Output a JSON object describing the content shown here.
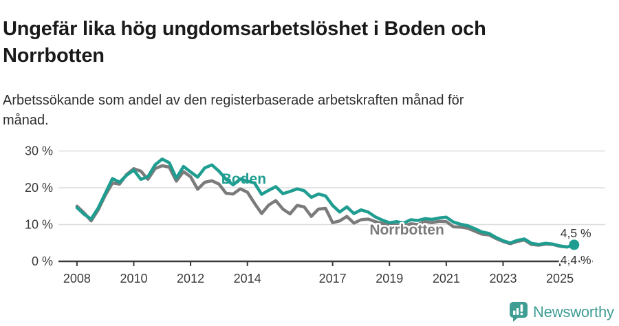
{
  "header": {
    "title": "Ungefär lika hög ungdomsarbetslöshet i Boden och Norrbotten",
    "subtitle": "Arbetssökande som andel av den registerbaserade arbetskraften månad för månad."
  },
  "footer": {
    "brand_name": "Newsworthy",
    "logo_icon": "speech-bubble-bar-chart-exclamation-icon"
  },
  "colors": {
    "boden": "#1f9d90",
    "norrbotten": "#7b7b7b",
    "grid": "#dcdcdc",
    "axis": "#3a3a3a",
    "axis_text": "#3a3a3a",
    "annotation_text": "#333333",
    "title_text": "#1a1a1a",
    "subtitle_text": "#2e2e2e",
    "brand": "#3f9d94",
    "background": "#ffffff"
  },
  "chart_data": {
    "type": "line",
    "unit": "%",
    "title": "Ungefär lika hög ungdomsarbetslöshet i Boden och Norrbotten",
    "subtitle": "Arbetssökande som andel av den registerbaserade arbetskraften månad för månad.",
    "xlim": [
      2007.35,
      2026.16
    ],
    "ylim": [
      0,
      33
    ],
    "grid": "horizontal",
    "legend_position": "inline-annotations",
    "x_ticks": [
      {
        "value": 2008,
        "label": "2008"
      },
      {
        "value": 2010,
        "label": "2010"
      },
      {
        "value": 2012,
        "label": "2012"
      },
      {
        "value": 2014,
        "label": "2014"
      },
      {
        "value": 2017,
        "label": "2017"
      },
      {
        "value": 2019,
        "label": "2019"
      },
      {
        "value": 2021,
        "label": "2021"
      },
      {
        "value": 2023,
        "label": "2023"
      },
      {
        "value": 2025,
        "label": "2025"
      }
    ],
    "y_ticks": [
      {
        "value": 0,
        "label": "0 %"
      },
      {
        "value": 10,
        "label": "10 %"
      },
      {
        "value": 20,
        "label": "20 %"
      },
      {
        "value": 30,
        "label": "30 %"
      }
    ],
    "x": [
      2008,
      2008.25,
      2008.5,
      2008.75,
      2009,
      2009.25,
      2009.5,
      2009.75,
      2010,
      2010.25,
      2010.5,
      2010.75,
      2011,
      2011.25,
      2011.5,
      2011.75,
      2012,
      2012.25,
      2012.5,
      2012.75,
      2013,
      2013.25,
      2013.5,
      2013.75,
      2014,
      2014.25,
      2014.5,
      2014.75,
      2015,
      2015.25,
      2015.5,
      2015.75,
      2016,
      2016.25,
      2016.5,
      2016.75,
      2017,
      2017.25,
      2017.5,
      2017.75,
      2018,
      2018.25,
      2018.5,
      2018.75,
      2019,
      2019.25,
      2019.5,
      2019.75,
      2020,
      2020.25,
      2020.5,
      2020.75,
      2021,
      2021.25,
      2021.5,
      2021.75,
      2022,
      2022.25,
      2022.5,
      2022.75,
      2023,
      2023.25,
      2023.5,
      2023.75,
      2024,
      2024.25,
      2024.5,
      2024.75,
      2025,
      2025.25,
      2025.5
    ],
    "series": [
      {
        "name": "Norrbotten",
        "color_key": "norrbotten",
        "end_label": "4,4 %",
        "end_dot": false,
        "stroke_width": 4.5,
        "values": [
          15.0,
          13.2,
          11.0,
          14.0,
          18.0,
          21.3,
          21.0,
          23.6,
          25.2,
          24.5,
          22.3,
          25.2,
          26.0,
          25.6,
          21.8,
          24.4,
          23.0,
          19.6,
          21.5,
          21.9,
          21.0,
          18.5,
          18.3,
          19.7,
          18.8,
          15.8,
          13.0,
          15.3,
          16.5,
          14.2,
          12.9,
          15.2,
          14.8,
          12.2,
          14.2,
          14.4,
          10.5,
          11.0,
          12.2,
          10.4,
          11.3,
          11.5,
          10.8,
          10.3,
          10.0,
          9.9,
          9.6,
          10.2,
          10.0,
          10.8,
          10.5,
          10.9,
          10.8,
          9.4,
          9.3,
          9.0,
          8.2,
          7.4,
          7.2,
          6.2,
          5.4,
          4.8,
          5.4,
          5.8,
          4.6,
          4.4,
          4.7,
          4.6,
          4.1,
          3.9,
          4.4
        ]
      },
      {
        "name": "Boden",
        "color_key": "boden",
        "end_label": "4,5 %",
        "end_dot": true,
        "stroke_width": 4.5,
        "values": [
          14.6,
          12.8,
          11.5,
          14.5,
          18.5,
          22.5,
          21.5,
          23.4,
          24.8,
          22.3,
          23.0,
          26.2,
          27.8,
          26.8,
          22.6,
          25.8,
          24.3,
          22.9,
          25.4,
          26.2,
          24.5,
          22.3,
          20.8,
          22.4,
          21.8,
          21.3,
          18.2,
          19.3,
          20.3,
          18.4,
          19.0,
          19.7,
          19.2,
          17.4,
          18.3,
          17.8,
          15.2,
          13.4,
          14.8,
          13.0,
          14.0,
          13.4,
          12.1,
          11.2,
          10.5,
          10.8,
          10.4,
          11.3,
          11.1,
          11.6,
          11.4,
          11.8,
          12.0,
          10.7,
          10.1,
          9.7,
          8.9,
          8.0,
          7.6,
          6.5,
          5.6,
          5.0,
          5.7,
          6.1,
          4.9,
          4.6,
          4.9,
          4.7,
          4.2,
          3.9,
          4.5
        ]
      }
    ],
    "annotations": [
      {
        "text": "Boden",
        "color_key": "boden",
        "x": 2013.08,
        "y": 21.1,
        "size": 21,
        "weight": "bold",
        "halo": false,
        "anchor": "start"
      },
      {
        "text": "Norrbotten",
        "color_key": "norrbotten",
        "x": 2018.3,
        "y": 7.3,
        "size": 21,
        "weight": "bold",
        "halo": true,
        "anchor": "start"
      },
      {
        "text": "4,5 %",
        "color_key": "annotation_text",
        "x": 2026.1,
        "y": 6.5,
        "size": 17.5,
        "weight": "normal",
        "halo": true,
        "anchor": "end"
      },
      {
        "text": "4,4 %",
        "color_key": "annotation_text",
        "x": 2026.1,
        "y": -0.75,
        "size": 17.5,
        "weight": "normal",
        "halo": true,
        "anchor": "end"
      }
    ]
  }
}
